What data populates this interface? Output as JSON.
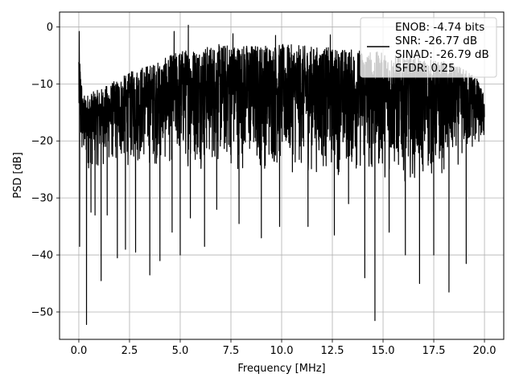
{
  "chart_data": {
    "type": "line",
    "xlabel": "Frequency [MHz]",
    "ylabel": "PSD [dB]",
    "xlim": [
      -0.95,
      20.95
    ],
    "ylim": [
      -54.8,
      2.6
    ],
    "xticks": [
      0.0,
      2.5,
      5.0,
      7.5,
      10.0,
      12.5,
      15.0,
      17.5,
      20.0
    ],
    "xtick_labels": [
      "0.0",
      "2.5",
      "5.0",
      "7.5",
      "10.0",
      "12.5",
      "15.0",
      "17.5",
      "20.0"
    ],
    "yticks": [
      0,
      -10,
      -20,
      -30,
      -40,
      -50
    ],
    "ytick_labels": [
      "0",
      "−10",
      "−20",
      "−30",
      "−40",
      "−50"
    ],
    "grid": true,
    "legend_position": "top-right",
    "line_color": "#000000",
    "series": [
      {
        "name": "ENOB: -4.74 bits\nSNR: -26.77 dB\nSINAD: -26.79 dB\nSFDR: 0.25",
        "legend_lines": [
          "ENOB: -4.74 bits",
          "SNR: -26.77 dB",
          "SINAD: -26.79 dB",
          "SFDR: 0.25"
        ],
        "x_range": [
          0.0,
          20.0
        ],
        "upper_envelope": [
          [
            0.0,
            -1.0
          ],
          [
            0.05,
            -5.0
          ],
          [
            0.2,
            -12.0
          ],
          [
            1.0,
            -11.0
          ],
          [
            2.0,
            -9.0
          ],
          [
            3.0,
            -7.0
          ],
          [
            4.0,
            -6.0
          ],
          [
            5.0,
            -4.0
          ],
          [
            7.0,
            -3.0
          ],
          [
            10.0,
            -3.0
          ],
          [
            12.0,
            -3.5
          ],
          [
            14.0,
            -4.0
          ],
          [
            16.0,
            -5.0
          ],
          [
            18.0,
            -6.0
          ],
          [
            19.5,
            -8.0
          ],
          [
            20.0,
            -12.0
          ]
        ],
        "lower_envelope": [
          [
            0.0,
            -26.0
          ],
          [
            1.0,
            -25.0
          ],
          [
            3.0,
            -25.0
          ],
          [
            5.0,
            -25.0
          ],
          [
            10.0,
            -26.0
          ],
          [
            15.0,
            -27.0
          ],
          [
            17.5,
            -27.5
          ],
          [
            19.5,
            -23.0
          ],
          [
            20.0,
            -21.0
          ]
        ],
        "spikes": [
          {
            "x": 0.04,
            "y": -38.5
          },
          {
            "x": 0.38,
            "y": -52.2
          },
          {
            "x": 0.6,
            "y": -32.5
          },
          {
            "x": 0.8,
            "y": -33.0
          },
          {
            "x": 1.1,
            "y": -44.5
          },
          {
            "x": 1.4,
            "y": -33.0
          },
          {
            "x": 1.9,
            "y": -40.5
          },
          {
            "x": 2.3,
            "y": -39.0
          },
          {
            "x": 2.8,
            "y": -39.5
          },
          {
            "x": 3.5,
            "y": -43.5
          },
          {
            "x": 4.0,
            "y": -41.0
          },
          {
            "x": 4.6,
            "y": -36.0
          },
          {
            "x": 5.0,
            "y": -40.0
          },
          {
            "x": 5.5,
            "y": -33.5
          },
          {
            "x": 6.2,
            "y": -38.5
          },
          {
            "x": 6.8,
            "y": -32.0
          },
          {
            "x": 7.9,
            "y": -34.5
          },
          {
            "x": 9.0,
            "y": -37.0
          },
          {
            "x": 9.9,
            "y": -35.0
          },
          {
            "x": 11.3,
            "y": -35.0
          },
          {
            "x": 12.6,
            "y": -36.5
          },
          {
            "x": 13.3,
            "y": -31.0
          },
          {
            "x": 14.1,
            "y": -44.0
          },
          {
            "x": 14.6,
            "y": -51.5
          },
          {
            "x": 15.3,
            "y": -36.0
          },
          {
            "x": 16.1,
            "y": -40.0
          },
          {
            "x": 16.8,
            "y": -45.0
          },
          {
            "x": 17.5,
            "y": -40.0
          },
          {
            "x": 18.25,
            "y": -46.5
          },
          {
            "x": 19.1,
            "y": -41.5
          }
        ],
        "highs": [
          {
            "x": 0.02,
            "y": -0.8
          },
          {
            "x": 4.7,
            "y": -0.8
          },
          {
            "x": 5.4,
            "y": 0.3
          },
          {
            "x": 7.6,
            "y": -1.2
          },
          {
            "x": 9.7,
            "y": -1.5
          },
          {
            "x": 12.4,
            "y": -1.4
          }
        ]
      }
    ]
  }
}
